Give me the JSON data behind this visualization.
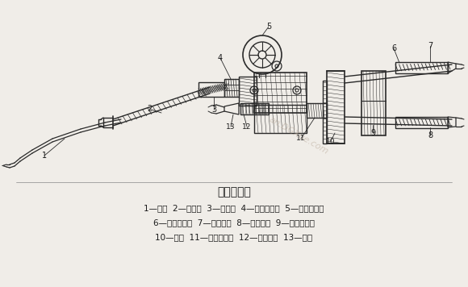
{
  "title": "焊炬的构造",
  "bg_color": "#f0ede8",
  "text_color": "#1a1a1a",
  "line_color": "#2a2a2a",
  "watermark": "an.DGXue.com",
  "caption_line1": "1—焊嘴  2—混合管  3—射吸管  4—射吸管螺母  5—乙炔调节阀",
  "caption_line2": "6—乙炔进气管  7—乙炔接头  8—氧气接头  9—氧气进气管",
  "caption_line3": "10—手柄  11—氧气调节阀  12—氧气阀针  13—喷嘴",
  "figsize": [
    5.8,
    3.56
  ],
  "dpi": 100
}
